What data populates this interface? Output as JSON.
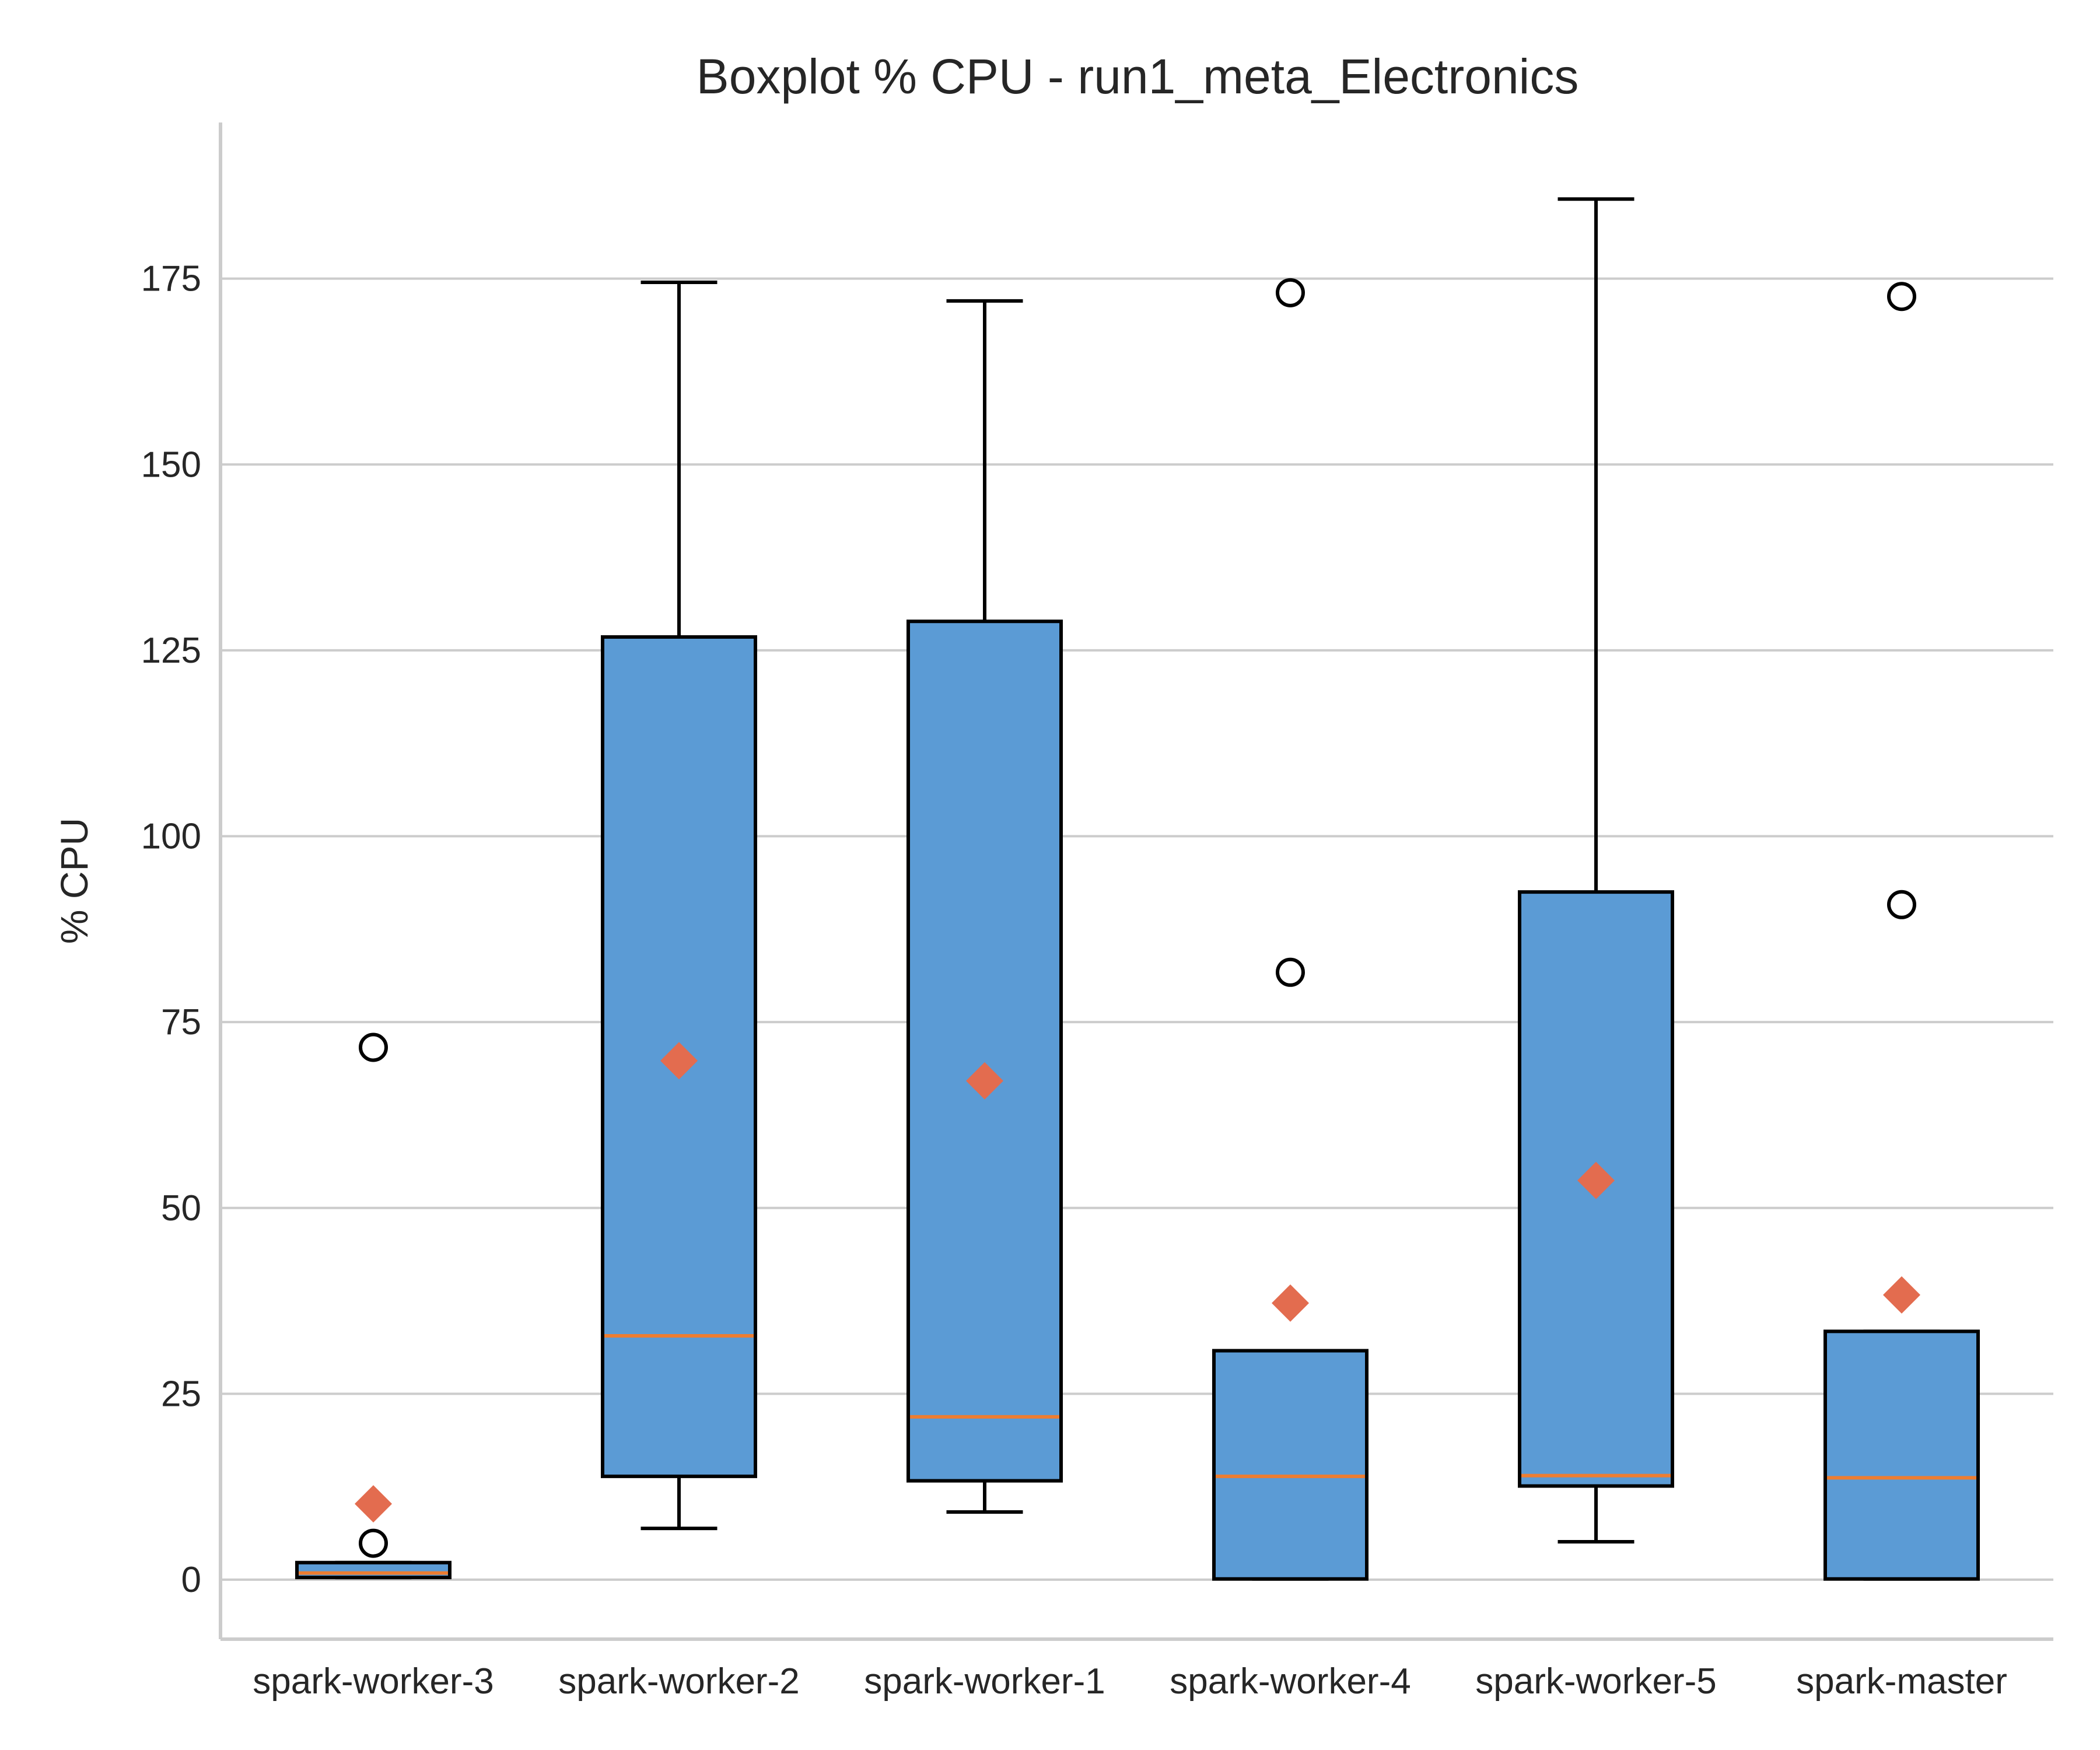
{
  "chart_data": {
    "type": "boxplot",
    "title": "Boxplot % CPU - run1_meta_Electronics",
    "xlabel": "",
    "ylabel": "% CPU",
    "ylim": [
      -8,
      196
    ],
    "yticks": [
      0,
      25,
      50,
      75,
      100,
      125,
      150,
      175
    ],
    "grid": "horizontal",
    "colors": {
      "box_fill": "#5b9bd5",
      "box_edge": "#000000",
      "median": "#ed7d31",
      "mean_marker": "#e36c4f",
      "grid": "#cccccc",
      "spine": "#cccccc"
    },
    "categories": [
      "spark-worker-3",
      "spark-worker-2",
      "spark-worker-1",
      "spark-worker-4",
      "spark-worker-5",
      "spark-master"
    ],
    "boxes": [
      {
        "whislo": 0.3,
        "q1": 0.3,
        "med": 0.9,
        "q3": 2.3,
        "whishi": 2.3,
        "mean": 10.2,
        "fliers": [
          4.9,
          71.6
        ]
      },
      {
        "whislo": 6.9,
        "q1": 13.9,
        "med": 32.8,
        "q3": 126.8,
        "whishi": 174.5,
        "mean": 69.8,
        "fliers": []
      },
      {
        "whislo": 9.1,
        "q1": 13.3,
        "med": 21.9,
        "q3": 128.9,
        "whishi": 172.0,
        "mean": 67.1,
        "fliers": []
      },
      {
        "whislo": 0.1,
        "q1": 0.1,
        "med": 13.9,
        "q3": 30.8,
        "whishi": 30.8,
        "mean": 37.2,
        "fliers": [
          81.7,
          173.1
        ]
      },
      {
        "whislo": 5.1,
        "q1": 12.6,
        "med": 14.0,
        "q3": 92.5,
        "whishi": 185.7,
        "mean": 53.7,
        "fliers": []
      },
      {
        "whislo": 0.1,
        "q1": 0.1,
        "med": 13.7,
        "q3": 33.4,
        "whishi": 33.4,
        "mean": 38.3,
        "fliers": [
          90.8,
          172.6
        ]
      }
    ]
  }
}
